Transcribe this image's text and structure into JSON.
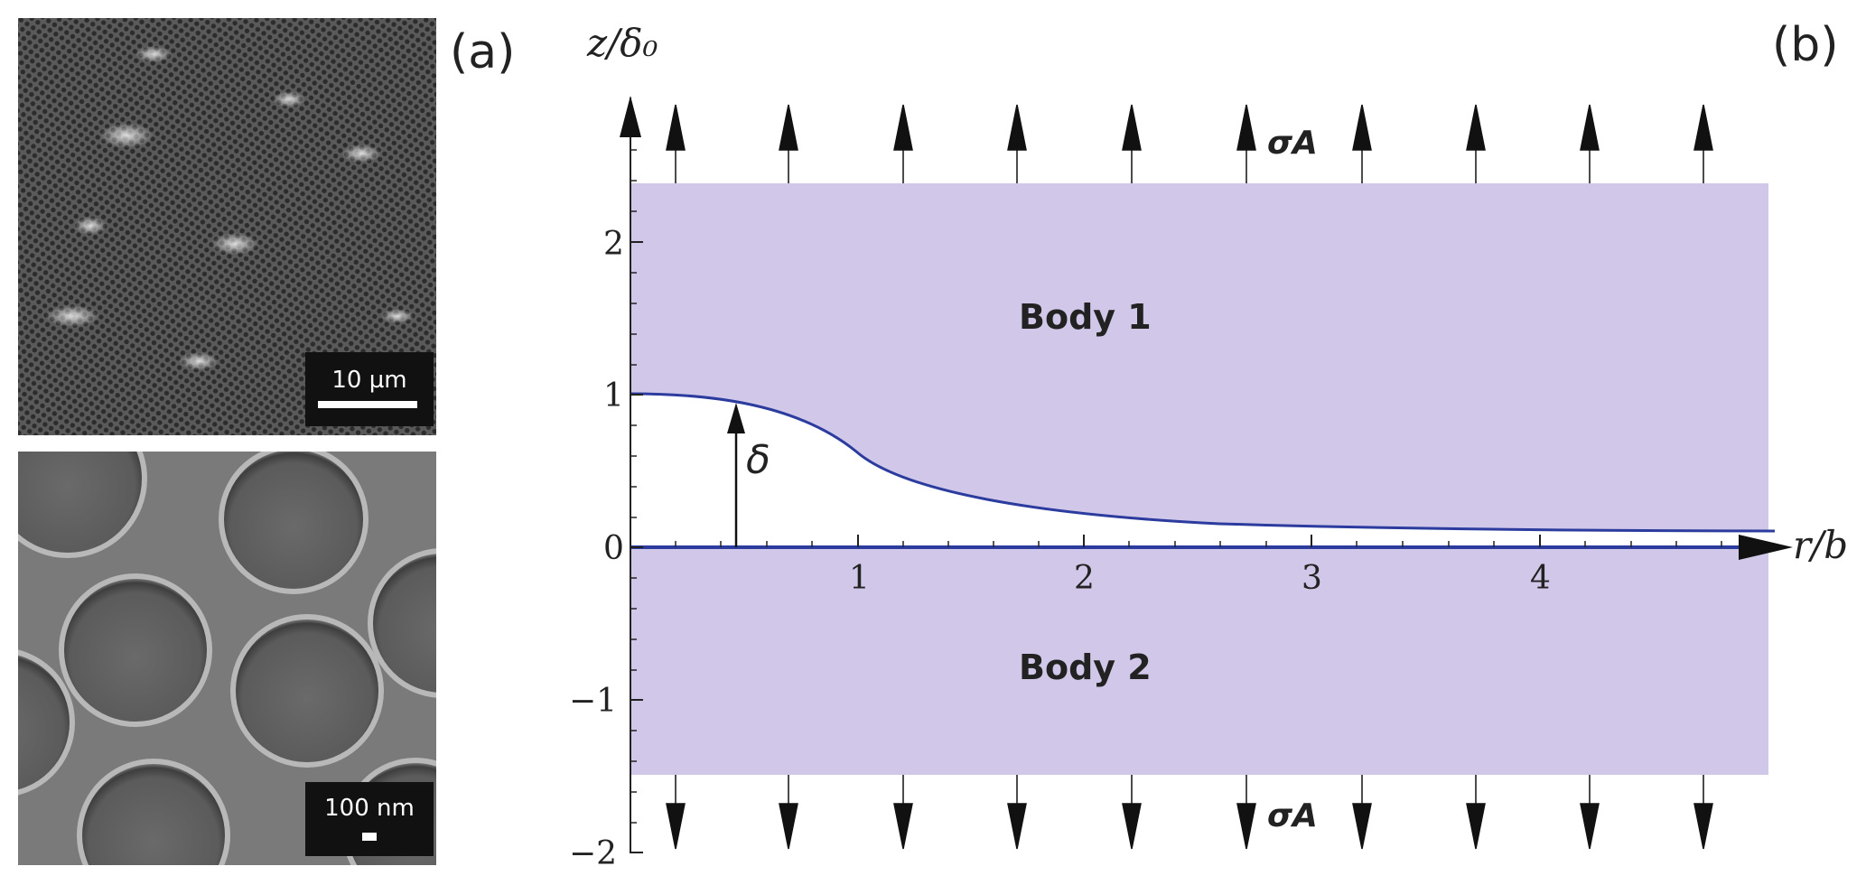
{
  "panel_a": {
    "label": "(a)",
    "top_image": {
      "scale_bar_label": "10 µm"
    },
    "bottom_image": {
      "scale_bar_label": "100 nm"
    }
  },
  "panel_b": {
    "label": "(b)",
    "axes": {
      "y_label": "z/δ₀",
      "x_label": "r/b",
      "y_ticks": [
        "2",
        "1",
        "0",
        "−1",
        "−2"
      ],
      "x_ticks": [
        "1",
        "2",
        "3",
        "4"
      ]
    },
    "body1_label": "Body 1",
    "body2_label": "Body 2",
    "gap_label": "δ",
    "stress_top_label": "σA",
    "stress_bottom_label": "σA",
    "colors": {
      "body_fill": "#d1c7e9",
      "curve": "#2b3b9e"
    }
  }
}
